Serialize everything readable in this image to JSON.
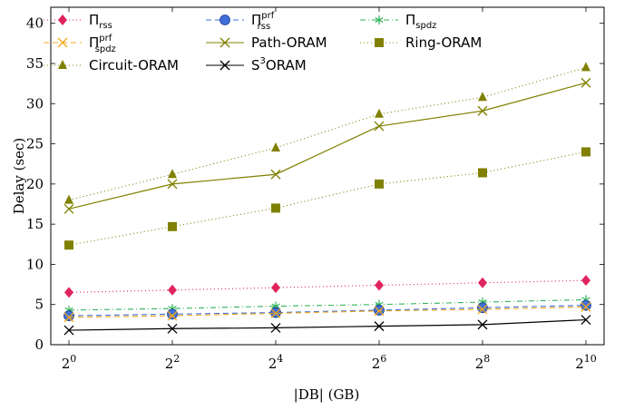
{
  "chart_data": {
    "type": "line",
    "x_tick_labels": [
      {
        "base": "2",
        "exp": "0"
      },
      {
        "base": "2",
        "exp": "2"
      },
      {
        "base": "2",
        "exp": "4"
      },
      {
        "base": "2",
        "exp": "6"
      },
      {
        "base": "2",
        "exp": "8"
      },
      {
        "base": "2",
        "exp": "10"
      }
    ],
    "x": [
      0,
      2,
      4,
      6,
      8,
      10
    ],
    "xlabel": "|DB| (GB)",
    "ylabel": "Delay (sec)",
    "ylim": [
      0,
      42
    ],
    "y_ticks": [
      0,
      5,
      10,
      15,
      20,
      25,
      30,
      35,
      40
    ],
    "grid": false,
    "legend_position": "top-left",
    "series": [
      {
        "key": "rss",
        "name_main": "Π",
        "name_sub": "rss",
        "name_sup": "",
        "color": "#e0245e",
        "dash": "dotted",
        "marker": "diamond",
        "values": [
          6.5,
          6.8,
          7.1,
          7.4,
          7.7,
          8.0
        ]
      },
      {
        "key": "rss-prf",
        "name_main": "Π",
        "name_sub": "rss",
        "name_sup": "prf",
        "color": "#3f6fd8",
        "dash": "dashed",
        "marker": "circle",
        "values": [
          3.6,
          3.8,
          4.0,
          4.3,
          4.6,
          4.9
        ]
      },
      {
        "key": "spdz",
        "name_main": "Π",
        "name_sub": "spdz",
        "name_sup": "",
        "color": "#2fb35a",
        "dash": "dashdot",
        "marker": "star",
        "values": [
          4.3,
          4.5,
          4.8,
          5.0,
          5.3,
          5.6
        ]
      },
      {
        "key": "spdz-prf",
        "name_main": "Π",
        "name_sub": "spdz",
        "name_sup": "prf",
        "color": "#f2a81d",
        "dash": "dashed",
        "marker": "x",
        "values": [
          3.4,
          3.6,
          3.9,
          4.2,
          4.4,
          4.7
        ]
      },
      {
        "key": "path-oram",
        "name_main": "Path-ORAM",
        "name_sub": "",
        "name_sup": "",
        "color": "#808000",
        "dash": "solid",
        "marker": "x",
        "values": [
          16.9,
          20.0,
          21.2,
          27.2,
          29.1,
          32.6
        ]
      },
      {
        "key": "ring-oram",
        "name_main": "Ring-ORAM",
        "name_sub": "",
        "name_sup": "",
        "color": "#808000",
        "dash": "dotted",
        "marker": "square",
        "values": [
          12.4,
          14.7,
          17.0,
          20.0,
          21.4,
          24.0
        ]
      },
      {
        "key": "circuit-oram",
        "name_main": "Circuit-ORAM",
        "name_sub": "",
        "name_sup": "",
        "color": "#808000",
        "dash": "dotted",
        "marker": "triangle",
        "values": [
          18.0,
          21.2,
          24.5,
          28.7,
          30.8,
          34.5
        ]
      },
      {
        "key": "s3oram",
        "name_main": "S",
        "name_sub": "",
        "name_sup": "3",
        "name_tail": "ORAM",
        "color": "#000000",
        "dash": "solid",
        "marker": "x",
        "values": [
          1.8,
          2.0,
          2.1,
          2.3,
          2.5,
          3.1
        ]
      }
    ]
  }
}
